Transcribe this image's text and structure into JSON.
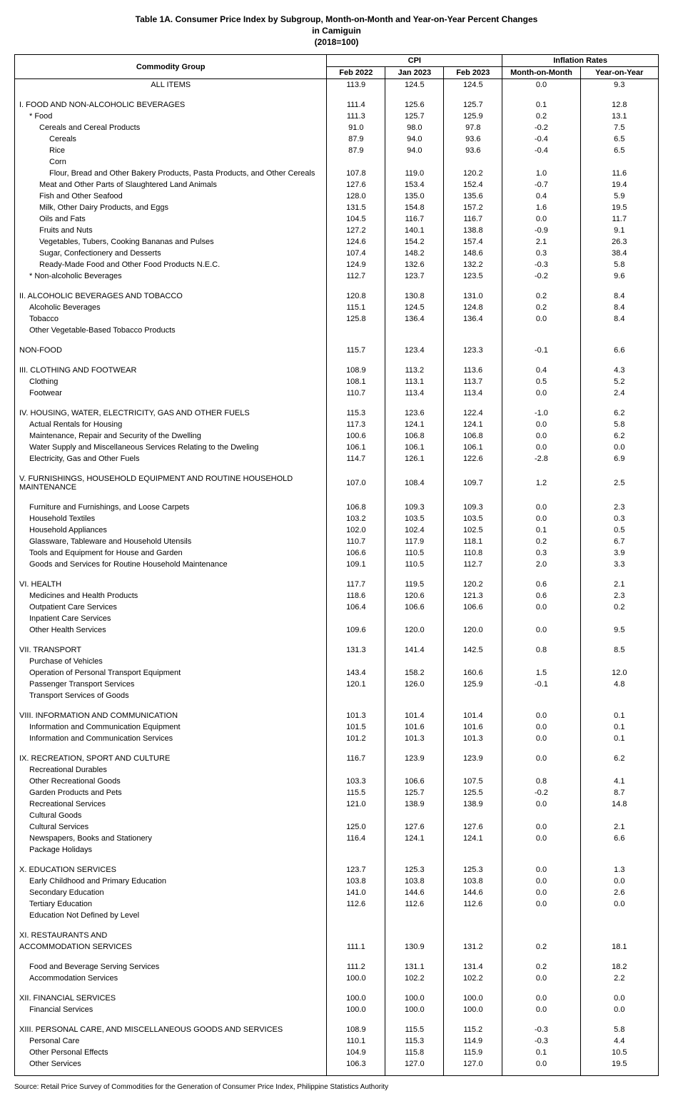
{
  "header": {
    "title": "Table 1A. Consumer Price Index by Subgroup, Month-on-Month and Year-on-Year Percent Changes",
    "subtitle1": "in Camiguin",
    "subtitle2": "(2018=100)"
  },
  "columns": {
    "group": "Commodity Group",
    "cpi": "CPI",
    "infl": "Inflation Rates",
    "feb22": "Feb 2022",
    "jan23": "Jan 2023",
    "feb23": "Feb 2023",
    "mom": "Month-on-Month",
    "yoy": "Year-on-Year"
  },
  "rows": [
    {
      "label": "ALL ITEMS",
      "indent": 0,
      "center": true,
      "v": [
        "113.9",
        "124.5",
        "124.5",
        "0.0",
        "9.3"
      ]
    },
    {
      "blank": true
    },
    {
      "label": "I. FOOD AND NON-ALCOHOLIC BEVERAGES",
      "indent": 1,
      "v": [
        "111.4",
        "125.6",
        "125.7",
        "0.1",
        "12.8"
      ]
    },
    {
      "label": "* Food",
      "indent": 2,
      "v": [
        "111.3",
        "125.7",
        "125.9",
        "0.2",
        "13.1"
      ]
    },
    {
      "label": "Cereals and Cereal Products",
      "indent": 3,
      "v": [
        "91.0",
        "98.0",
        "97.8",
        "-0.2",
        "7.5"
      ]
    },
    {
      "label": "Cereals",
      "indent": 4,
      "v": [
        "87.9",
        "94.0",
        "93.6",
        "-0.4",
        "6.5"
      ]
    },
    {
      "label": "Rice",
      "indent": 4,
      "v": [
        "87.9",
        "94.0",
        "93.6",
        "-0.4",
        "6.5"
      ]
    },
    {
      "label": "Corn",
      "indent": 4,
      "v": [
        "",
        "",
        "",
        "",
        ""
      ]
    },
    {
      "label": "Flour, Bread and Other Bakery Products, Pasta Products,  and Other Cereals",
      "indent": 4,
      "v": [
        "107.8",
        "119.0",
        "120.2",
        "1.0",
        "11.6"
      ]
    },
    {
      "label": "Meat and Other Parts of Slaughtered Land Animals",
      "indent": 3,
      "v": [
        "127.6",
        "153.4",
        "152.4",
        "-0.7",
        "19.4"
      ]
    },
    {
      "label": "Fish and Other Seafood",
      "indent": 3,
      "v": [
        "128.0",
        "135.0",
        "135.6",
        "0.4",
        "5.9"
      ]
    },
    {
      "label": "Milk, Other Dairy Products, and Eggs",
      "indent": 3,
      "v": [
        "131.5",
        "154.8",
        "157.2",
        "1.6",
        "19.5"
      ]
    },
    {
      "label": "Oils and Fats",
      "indent": 3,
      "v": [
        "104.5",
        "116.7",
        "116.7",
        "0.0",
        "11.7"
      ]
    },
    {
      "label": "Fruits and Nuts",
      "indent": 3,
      "v": [
        "127.2",
        "140.1",
        "138.8",
        "-0.9",
        "9.1"
      ]
    },
    {
      "label": "Vegetables, Tubers, Cooking Bananas and Pulses",
      "indent": 3,
      "v": [
        "124.6",
        "154.2",
        "157.4",
        "2.1",
        "26.3"
      ]
    },
    {
      "label": "Sugar, Confectionery and Desserts",
      "indent": 3,
      "v": [
        "107.4",
        "148.2",
        "148.6",
        "0.3",
        "38.4"
      ]
    },
    {
      "label": "Ready-Made Food and Other Food Products N.E.C.",
      "indent": 3,
      "v": [
        "124.9",
        "132.6",
        "132.2",
        "-0.3",
        "5.8"
      ]
    },
    {
      "label": "* Non-alcoholic Beverages",
      "indent": 2,
      "v": [
        "112.7",
        "123.7",
        "123.5",
        "-0.2",
        "9.6"
      ]
    },
    {
      "blank": true
    },
    {
      "label": "II. ALCOHOLIC BEVERAGES AND TOBACCO",
      "indent": 1,
      "v": [
        "120.8",
        "130.8",
        "131.0",
        "0.2",
        "8.4"
      ]
    },
    {
      "label": "Alcoholic Beverages",
      "indent": 2,
      "v": [
        "115.1",
        "124.5",
        "124.8",
        "0.2",
        "8.4"
      ]
    },
    {
      "label": "Tobacco",
      "indent": 2,
      "v": [
        "125.8",
        "136.4",
        "136.4",
        "0.0",
        "8.4"
      ]
    },
    {
      "label": "Other Vegetable-Based Tobacco Products",
      "indent": 2,
      "v": [
        "",
        "",
        "",
        "",
        ""
      ]
    },
    {
      "blank": true
    },
    {
      "label": "NON-FOOD",
      "indent": 1,
      "v": [
        "115.7",
        "123.4",
        "123.3",
        "-0.1",
        "6.6"
      ]
    },
    {
      "blank": true
    },
    {
      "label": "III. CLOTHING AND FOOTWEAR",
      "indent": 1,
      "v": [
        "108.9",
        "113.2",
        "113.6",
        "0.4",
        "4.3"
      ]
    },
    {
      "label": "Clothing",
      "indent": 2,
      "v": [
        "108.1",
        "113.1",
        "113.7",
        "0.5",
        "5.2"
      ]
    },
    {
      "label": "Footwear",
      "indent": 2,
      "v": [
        "110.7",
        "113.4",
        "113.4",
        "0.0",
        "2.4"
      ]
    },
    {
      "blank": true
    },
    {
      "label": "IV. HOUSING, WATER, ELECTRICITY, GAS AND OTHER FUELS",
      "indent": 1,
      "v": [
        "115.3",
        "123.6",
        "122.4",
        "-1.0",
        "6.2"
      ]
    },
    {
      "label": "Actual Rentals for Housing",
      "indent": 2,
      "v": [
        "117.3",
        "124.1",
        "124.1",
        "0.0",
        "5.8"
      ]
    },
    {
      "label": "Maintenance, Repair and Security of the Dwelling",
      "indent": 2,
      "v": [
        "100.6",
        "106.8",
        "106.8",
        "0.0",
        "6.2"
      ]
    },
    {
      "label": "Water Supply and Miscellaneous Services Relating to the Dweling",
      "indent": 2,
      "v": [
        "106.1",
        "106.1",
        "106.1",
        "0.0",
        "0.0"
      ]
    },
    {
      "label": "Electricity, Gas and Other Fuels",
      "indent": 2,
      "v": [
        "114.7",
        "126.1",
        "122.6",
        "-2.8",
        "6.9"
      ]
    },
    {
      "blank": true
    },
    {
      "label": "V. FURNISHINGS, HOUSEHOLD EQUIPMENT AND ROUTINE HOUSEHOLD MAINTENANCE",
      "indent": 1,
      "v": [
        "107.0",
        "108.4",
        "109.7",
        "1.2",
        "2.5"
      ]
    },
    {
      "blank": true
    },
    {
      "label": "Furniture and Furnishings, and Loose Carpets",
      "indent": 2,
      "v": [
        "106.8",
        "109.3",
        "109.3",
        "0.0",
        "2.3"
      ]
    },
    {
      "label": "Household Textiles",
      "indent": 2,
      "v": [
        "103.2",
        "103.5",
        "103.5",
        "0.0",
        "0.3"
      ]
    },
    {
      "label": "Household Appliances",
      "indent": 2,
      "v": [
        "102.0",
        "102.4",
        "102.5",
        "0.1",
        "0.5"
      ]
    },
    {
      "label": "Glassware, Tableware and Household Utensils",
      "indent": 2,
      "v": [
        "110.7",
        "117.9",
        "118.1",
        "0.2",
        "6.7"
      ]
    },
    {
      "label": "Tools and Equipment for House and Garden",
      "indent": 2,
      "v": [
        "106.6",
        "110.5",
        "110.8",
        "0.3",
        "3.9"
      ]
    },
    {
      "label": "Goods and Services for Routine Household Maintenance",
      "indent": 2,
      "v": [
        "109.1",
        "110.5",
        "112.7",
        "2.0",
        "3.3"
      ]
    },
    {
      "blank": true
    },
    {
      "label": "VI. HEALTH",
      "indent": 1,
      "v": [
        "117.7",
        "119.5",
        "120.2",
        "0.6",
        "2.1"
      ]
    },
    {
      "label": "Medicines and Health Products",
      "indent": 2,
      "v": [
        "118.6",
        "120.6",
        "121.3",
        "0.6",
        "2.3"
      ]
    },
    {
      "label": "Outpatient Care Services",
      "indent": 2,
      "v": [
        "106.4",
        "106.6",
        "106.6",
        "0.0",
        "0.2"
      ]
    },
    {
      "label": "Inpatient Care Services",
      "indent": 2,
      "v": [
        "",
        "",
        "",
        "",
        ""
      ]
    },
    {
      "label": "Other Health Services",
      "indent": 2,
      "v": [
        "109.6",
        "120.0",
        "120.0",
        "0.0",
        "9.5"
      ]
    },
    {
      "blank": true
    },
    {
      "label": "VII. TRANSPORT",
      "indent": 1,
      "v": [
        "131.3",
        "141.4",
        "142.5",
        "0.8",
        "8.5"
      ]
    },
    {
      "label": "Purchase of Vehicles",
      "indent": 2,
      "v": [
        "",
        "",
        "",
        "",
        ""
      ]
    },
    {
      "label": "Operation of Personal Transport Equipment",
      "indent": 2,
      "v": [
        "143.4",
        "158.2",
        "160.6",
        "1.5",
        "12.0"
      ]
    },
    {
      "label": "Passenger Transport Services",
      "indent": 2,
      "v": [
        "120.1",
        "126.0",
        "125.9",
        "-0.1",
        "4.8"
      ]
    },
    {
      "label": "Transport Services of Goods",
      "indent": 2,
      "v": [
        "",
        "",
        "",
        "",
        ""
      ]
    },
    {
      "blank": true
    },
    {
      "label": "VIII. INFORMATION AND COMMUNICATION",
      "indent": 1,
      "v": [
        "101.3",
        "101.4",
        "101.4",
        "0.0",
        "0.1"
      ]
    },
    {
      "label": "Information and Communication Equipment",
      "indent": 2,
      "v": [
        "101.5",
        "101.6",
        "101.6",
        "0.0",
        "0.1"
      ]
    },
    {
      "label": "Information and Communication Services",
      "indent": 2,
      "v": [
        "101.2",
        "101.3",
        "101.3",
        "0.0",
        "0.1"
      ]
    },
    {
      "blank": true
    },
    {
      "label": "IX. RECREATION, SPORT AND CULTURE",
      "indent": 1,
      "v": [
        "116.7",
        "123.9",
        "123.9",
        "0.0",
        "6.2"
      ]
    },
    {
      "label": "Recreational Durables",
      "indent": 2,
      "v": [
        "",
        "",
        "",
        "",
        ""
      ]
    },
    {
      "label": "Other Recreational Goods",
      "indent": 2,
      "v": [
        "103.3",
        "106.6",
        "107.5",
        "0.8",
        "4.1"
      ]
    },
    {
      "label": "Garden Products and Pets",
      "indent": 2,
      "v": [
        "115.5",
        "125.7",
        "125.5",
        "-0.2",
        "8.7"
      ]
    },
    {
      "label": "Recreational Services",
      "indent": 2,
      "v": [
        "121.0",
        "138.9",
        "138.9",
        "0.0",
        "14.8"
      ]
    },
    {
      "label": "Cultural Goods",
      "indent": 2,
      "v": [
        "",
        "",
        "",
        "",
        ""
      ]
    },
    {
      "label": "Cultural Services",
      "indent": 2,
      "v": [
        "125.0",
        "127.6",
        "127.6",
        "0.0",
        "2.1"
      ]
    },
    {
      "label": "Newspapers, Books and Stationery",
      "indent": 2,
      "v": [
        "116.4",
        "124.1",
        "124.1",
        "0.0",
        "6.6"
      ]
    },
    {
      "label": "Package Holidays",
      "indent": 2,
      "v": [
        "",
        "",
        "",
        "",
        ""
      ]
    },
    {
      "blank": true
    },
    {
      "label": "X. EDUCATION SERVICES",
      "indent": 1,
      "v": [
        "123.7",
        "125.3",
        "125.3",
        "0.0",
        "1.3"
      ]
    },
    {
      "label": "Early Childhood and Primary Education",
      "indent": 2,
      "v": [
        "103.8",
        "103.8",
        "103.8",
        "0.0",
        "0.0"
      ]
    },
    {
      "label": "Secondary Education",
      "indent": 2,
      "v": [
        "141.0",
        "144.6",
        "144.6",
        "0.0",
        "2.6"
      ]
    },
    {
      "label": "Tertiary Education",
      "indent": 2,
      "v": [
        "112.6",
        "112.6",
        "112.6",
        "0.0",
        "0.0"
      ]
    },
    {
      "label": "Education Not Defined by Level",
      "indent": 2,
      "v": [
        "",
        "",
        "",
        "",
        ""
      ]
    },
    {
      "blank": true
    },
    {
      "label": "XI. RESTAURANTS AND",
      "indent": 1,
      "v": [
        "",
        "",
        "",
        "",
        ""
      ]
    },
    {
      "label": "ACCOMMODATION SERVICES",
      "indent": 1,
      "v": [
        "111.1",
        "130.9",
        "131.2",
        "0.2",
        "18.1"
      ]
    },
    {
      "blank": true
    },
    {
      "label": "Food and Beverage Serving Services",
      "indent": 2,
      "v": [
        "111.2",
        "131.1",
        "131.4",
        "0.2",
        "18.2"
      ]
    },
    {
      "label": "Accommodation Services",
      "indent": 2,
      "v": [
        "100.0",
        "102.2",
        "102.2",
        "0.0",
        "2.2"
      ]
    },
    {
      "blank": true
    },
    {
      "label": "XII. FINANCIAL SERVICES",
      "indent": 1,
      "v": [
        "100.0",
        "100.0",
        "100.0",
        "0.0",
        "0.0"
      ]
    },
    {
      "label": "Financial Services",
      "indent": 2,
      "v": [
        "100.0",
        "100.0",
        "100.0",
        "0.0",
        "0.0"
      ]
    },
    {
      "blank": true
    },
    {
      "label": "XIII. PERSONAL CARE, AND MISCELLANEOUS GOODS AND SERVICES",
      "indent": 1,
      "v": [
        "108.9",
        "115.5",
        "115.2",
        "-0.3",
        "5.8"
      ]
    },
    {
      "label": "Personal Care",
      "indent": 2,
      "v": [
        "110.1",
        "115.3",
        "114.9",
        "-0.3",
        "4.4"
      ]
    },
    {
      "label": "Other Personal Effects",
      "indent": 2,
      "v": [
        "104.9",
        "115.8",
        "115.9",
        "0.1",
        "10.5"
      ]
    },
    {
      "label": "Other Services",
      "indent": 2,
      "v": [
        "106.3",
        "127.0",
        "127.0",
        "0.0",
        "19.5"
      ]
    }
  ],
  "source": "Source: Retail Price Survey of Commodities for the Generation of Consumer Price Index, Philippine Statistics Authority"
}
